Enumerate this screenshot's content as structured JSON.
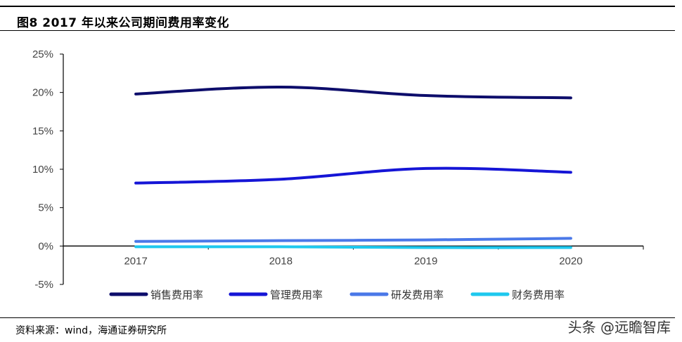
{
  "header": {
    "title": "图8   2017 年以来公司期间费用率变化"
  },
  "footer": {
    "source": "资料来源：wind，海通证券研究所",
    "watermark": "头条 @远瞻智库"
  },
  "chart_data": {
    "type": "line",
    "x": [
      "2017",
      "2018",
      "2019",
      "2020"
    ],
    "ylim": [
      -0.05,
      0.25
    ],
    "yticks": [
      -0.05,
      0,
      0.05,
      0.1,
      0.15,
      0.2,
      0.25
    ],
    "ytick_labels": [
      "-5%",
      "0%",
      "5%",
      "10%",
      "15%",
      "20%",
      "25%"
    ],
    "legend_position": "bottom",
    "series": [
      {
        "name": "销售费用率",
        "color": "#0d0d6b",
        "values": [
          0.198,
          0.207,
          0.196,
          0.193
        ]
      },
      {
        "name": "管理费用率",
        "color": "#1515d6",
        "values": [
          0.082,
          0.087,
          0.101,
          0.096
        ]
      },
      {
        "name": "研发费用率",
        "color": "#4a78e8",
        "values": [
          0.006,
          0.007,
          0.008,
          0.01
        ]
      },
      {
        "name": "财务费用率",
        "color": "#1ec8ee",
        "values": [
          -0.001,
          -0.001,
          -0.002,
          -0.002
        ]
      }
    ]
  }
}
